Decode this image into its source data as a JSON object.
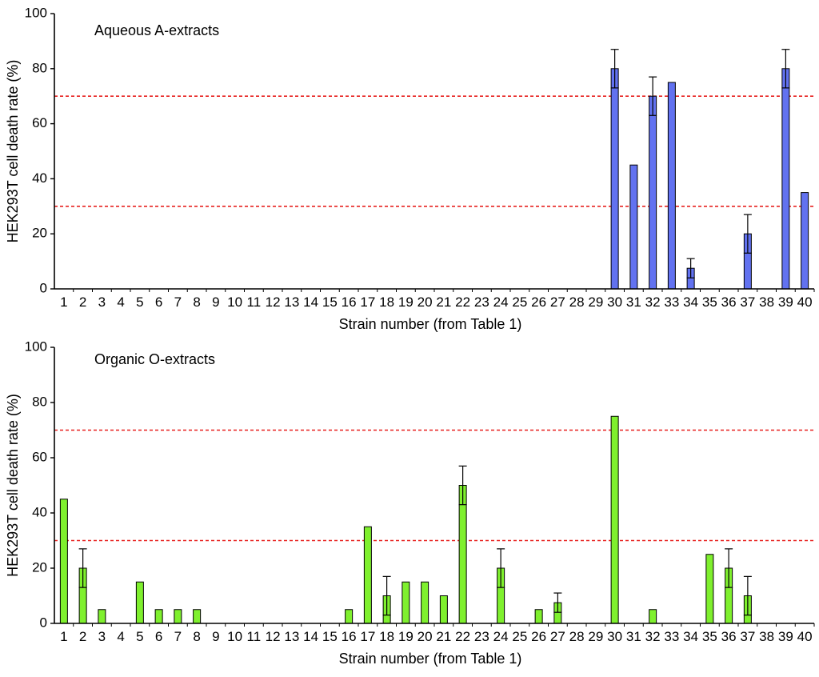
{
  "chart_data": [
    {
      "type": "bar",
      "title": "Aqueous A-extracts",
      "xlabel": "Strain number (from Table 1)",
      "ylabel": "HEK293T cell death rate (%)",
      "ylim": [
        0,
        100
      ],
      "yticks": [
        0,
        20,
        40,
        60,
        80,
        100
      ],
      "categories": [
        "1",
        "2",
        "3",
        "4",
        "5",
        "6",
        "7",
        "8",
        "9",
        "10",
        "11",
        "12",
        "13",
        "14",
        "15",
        "16",
        "17",
        "18",
        "19",
        "20",
        "21",
        "22",
        "23",
        "24",
        "25",
        "26",
        "27",
        "28",
        "29",
        "30",
        "31",
        "32",
        "33",
        "34",
        "35",
        "36",
        "37",
        "38",
        "39",
        "40"
      ],
      "values": [
        0,
        0,
        0,
        0,
        0,
        0,
        0,
        0,
        0,
        0,
        0,
        0,
        0,
        0,
        0,
        0,
        0,
        0,
        0,
        0,
        0,
        0,
        0,
        0,
        0,
        0,
        0,
        0,
        0,
        80,
        45,
        70,
        75,
        7.5,
        0,
        0,
        20,
        0,
        80,
        35
      ],
      "errors": [
        0,
        0,
        0,
        0,
        0,
        0,
        0,
        0,
        0,
        0,
        0,
        0,
        0,
        0,
        0,
        0,
        0,
        0,
        0,
        0,
        0,
        0,
        0,
        0,
        0,
        0,
        0,
        0,
        0,
        7,
        0,
        7,
        0,
        3.5,
        0,
        0,
        7,
        0,
        7,
        0
      ],
      "bar_color": "#6272f0",
      "reference_lines": [
        70,
        30
      ],
      "reference_color": "#e8211f",
      "grid": false
    },
    {
      "type": "bar",
      "title": "Organic O-extracts",
      "xlabel": "Strain number (from Table 1)",
      "ylabel": "HEK293T cell death rate (%)",
      "ylim": [
        0,
        100
      ],
      "yticks": [
        0,
        20,
        40,
        60,
        80,
        100
      ],
      "categories": [
        "1",
        "2",
        "3",
        "4",
        "5",
        "6",
        "7",
        "8",
        "9",
        "10",
        "11",
        "12",
        "13",
        "14",
        "15",
        "16",
        "17",
        "18",
        "19",
        "20",
        "21",
        "22",
        "23",
        "24",
        "25",
        "26",
        "27",
        "28",
        "29",
        "30",
        "31",
        "32",
        "33",
        "34",
        "35",
        "36",
        "37",
        "38",
        "39",
        "40"
      ],
      "values": [
        45,
        20,
        5,
        0,
        15,
        5,
        5,
        5,
        0,
        0,
        0,
        0,
        0,
        0,
        0,
        5,
        35,
        10,
        15,
        15,
        10,
        50,
        0,
        20,
        0,
        5,
        7.5,
        0,
        0,
        75,
        0,
        5,
        0,
        0,
        25,
        20,
        10,
        0,
        0,
        0
      ],
      "errors": [
        0,
        7,
        0,
        0,
        0,
        0,
        0,
        0,
        0,
        0,
        0,
        0,
        0,
        0,
        0,
        0,
        0,
        7,
        0,
        0,
        0,
        7,
        0,
        7,
        0,
        0,
        3.5,
        0,
        0,
        0,
        0,
        0,
        0,
        0,
        0,
        7,
        7,
        0,
        0,
        0
      ],
      "bar_color": "#7ff02e",
      "reference_lines": [
        70,
        30
      ],
      "reference_color": "#e8211f",
      "grid": false
    }
  ]
}
